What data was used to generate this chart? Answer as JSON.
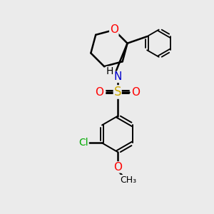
{
  "background_color": "#ebebeb",
  "bond_color": "#000000",
  "O_color": "#ff0000",
  "N_color": "#0000cd",
  "S_color": "#ccaa00",
  "Cl_color": "#00aa00",
  "figsize": [
    3.0,
    3.0
  ],
  "dpi": 100,
  "xlim": [
    0,
    10
  ],
  "ylim": [
    0,
    10
  ]
}
